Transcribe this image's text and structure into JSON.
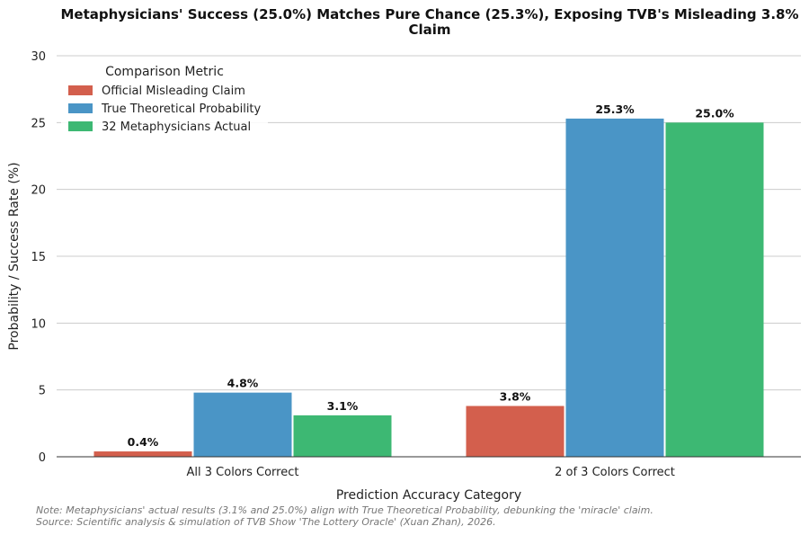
{
  "chart_data": {
    "type": "bar",
    "title_line1": "Metaphysicians' Success (25.0%) Matches Pure Chance (25.3%), Exposing TVB's Misleading 3.8%",
    "title_line2": "Claim",
    "xlabel": "Prediction Accuracy Category",
    "ylabel": "Probability / Success Rate (%)",
    "ylim": [
      0,
      30
    ],
    "yticks": [
      0,
      5,
      10,
      15,
      20,
      25,
      30
    ],
    "categories": [
      "All 3 Colors Correct",
      "2 of 3 Colors Correct"
    ],
    "legend_title": "Comparison Metric",
    "legend_position": "top-left",
    "grid": "horizontal",
    "series": [
      {
        "name": "Official Misleading Claim",
        "color": "#d35f4d",
        "values": [
          0.4,
          3.8
        ],
        "labels": [
          "0.4%",
          "3.8%"
        ]
      },
      {
        "name": "True Theoretical Probability",
        "color": "#4a95c6",
        "values": [
          4.8,
          25.3
        ],
        "labels": [
          "4.8%",
          "25.3%"
        ]
      },
      {
        "name": "32 Metaphysicians Actual",
        "color": "#3db873",
        "values": [
          3.1,
          25.0
        ],
        "labels": [
          "3.1%",
          "25.0%"
        ]
      }
    ],
    "note_line1": "Note: Metaphysicians' actual results (3.1% and 25.0%) align with True Theoretical Probability, debunking the 'miracle' claim.",
    "note_line2": "Source: Scientific analysis & simulation of TVB Show 'The Lottery Oracle' (Xuan Zhan), 2026."
  }
}
